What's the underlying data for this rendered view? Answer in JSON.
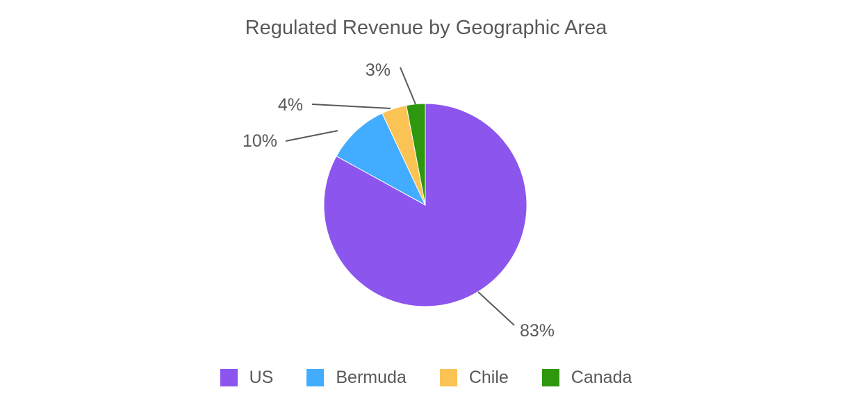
{
  "chart_data": {
    "type": "pie",
    "title": "Regulated Revenue by Geographic Area",
    "categories": [
      "US",
      "Bermuda",
      "Chile",
      "Canada"
    ],
    "values": [
      83,
      10,
      4,
      3
    ],
    "labels": [
      "83%",
      "10%",
      "4%",
      "3%"
    ],
    "colors": [
      "#8b55ee",
      "#42acff",
      "#fbc254",
      "#2f970d"
    ],
    "legend_position": "bottom"
  },
  "legend": [
    {
      "label": "US",
      "color": "#8b55ee"
    },
    {
      "label": "Bermuda",
      "color": "#42acff"
    },
    {
      "label": "Chile",
      "color": "#fbc254"
    },
    {
      "label": "Canada",
      "color": "#2f970d"
    }
  ]
}
